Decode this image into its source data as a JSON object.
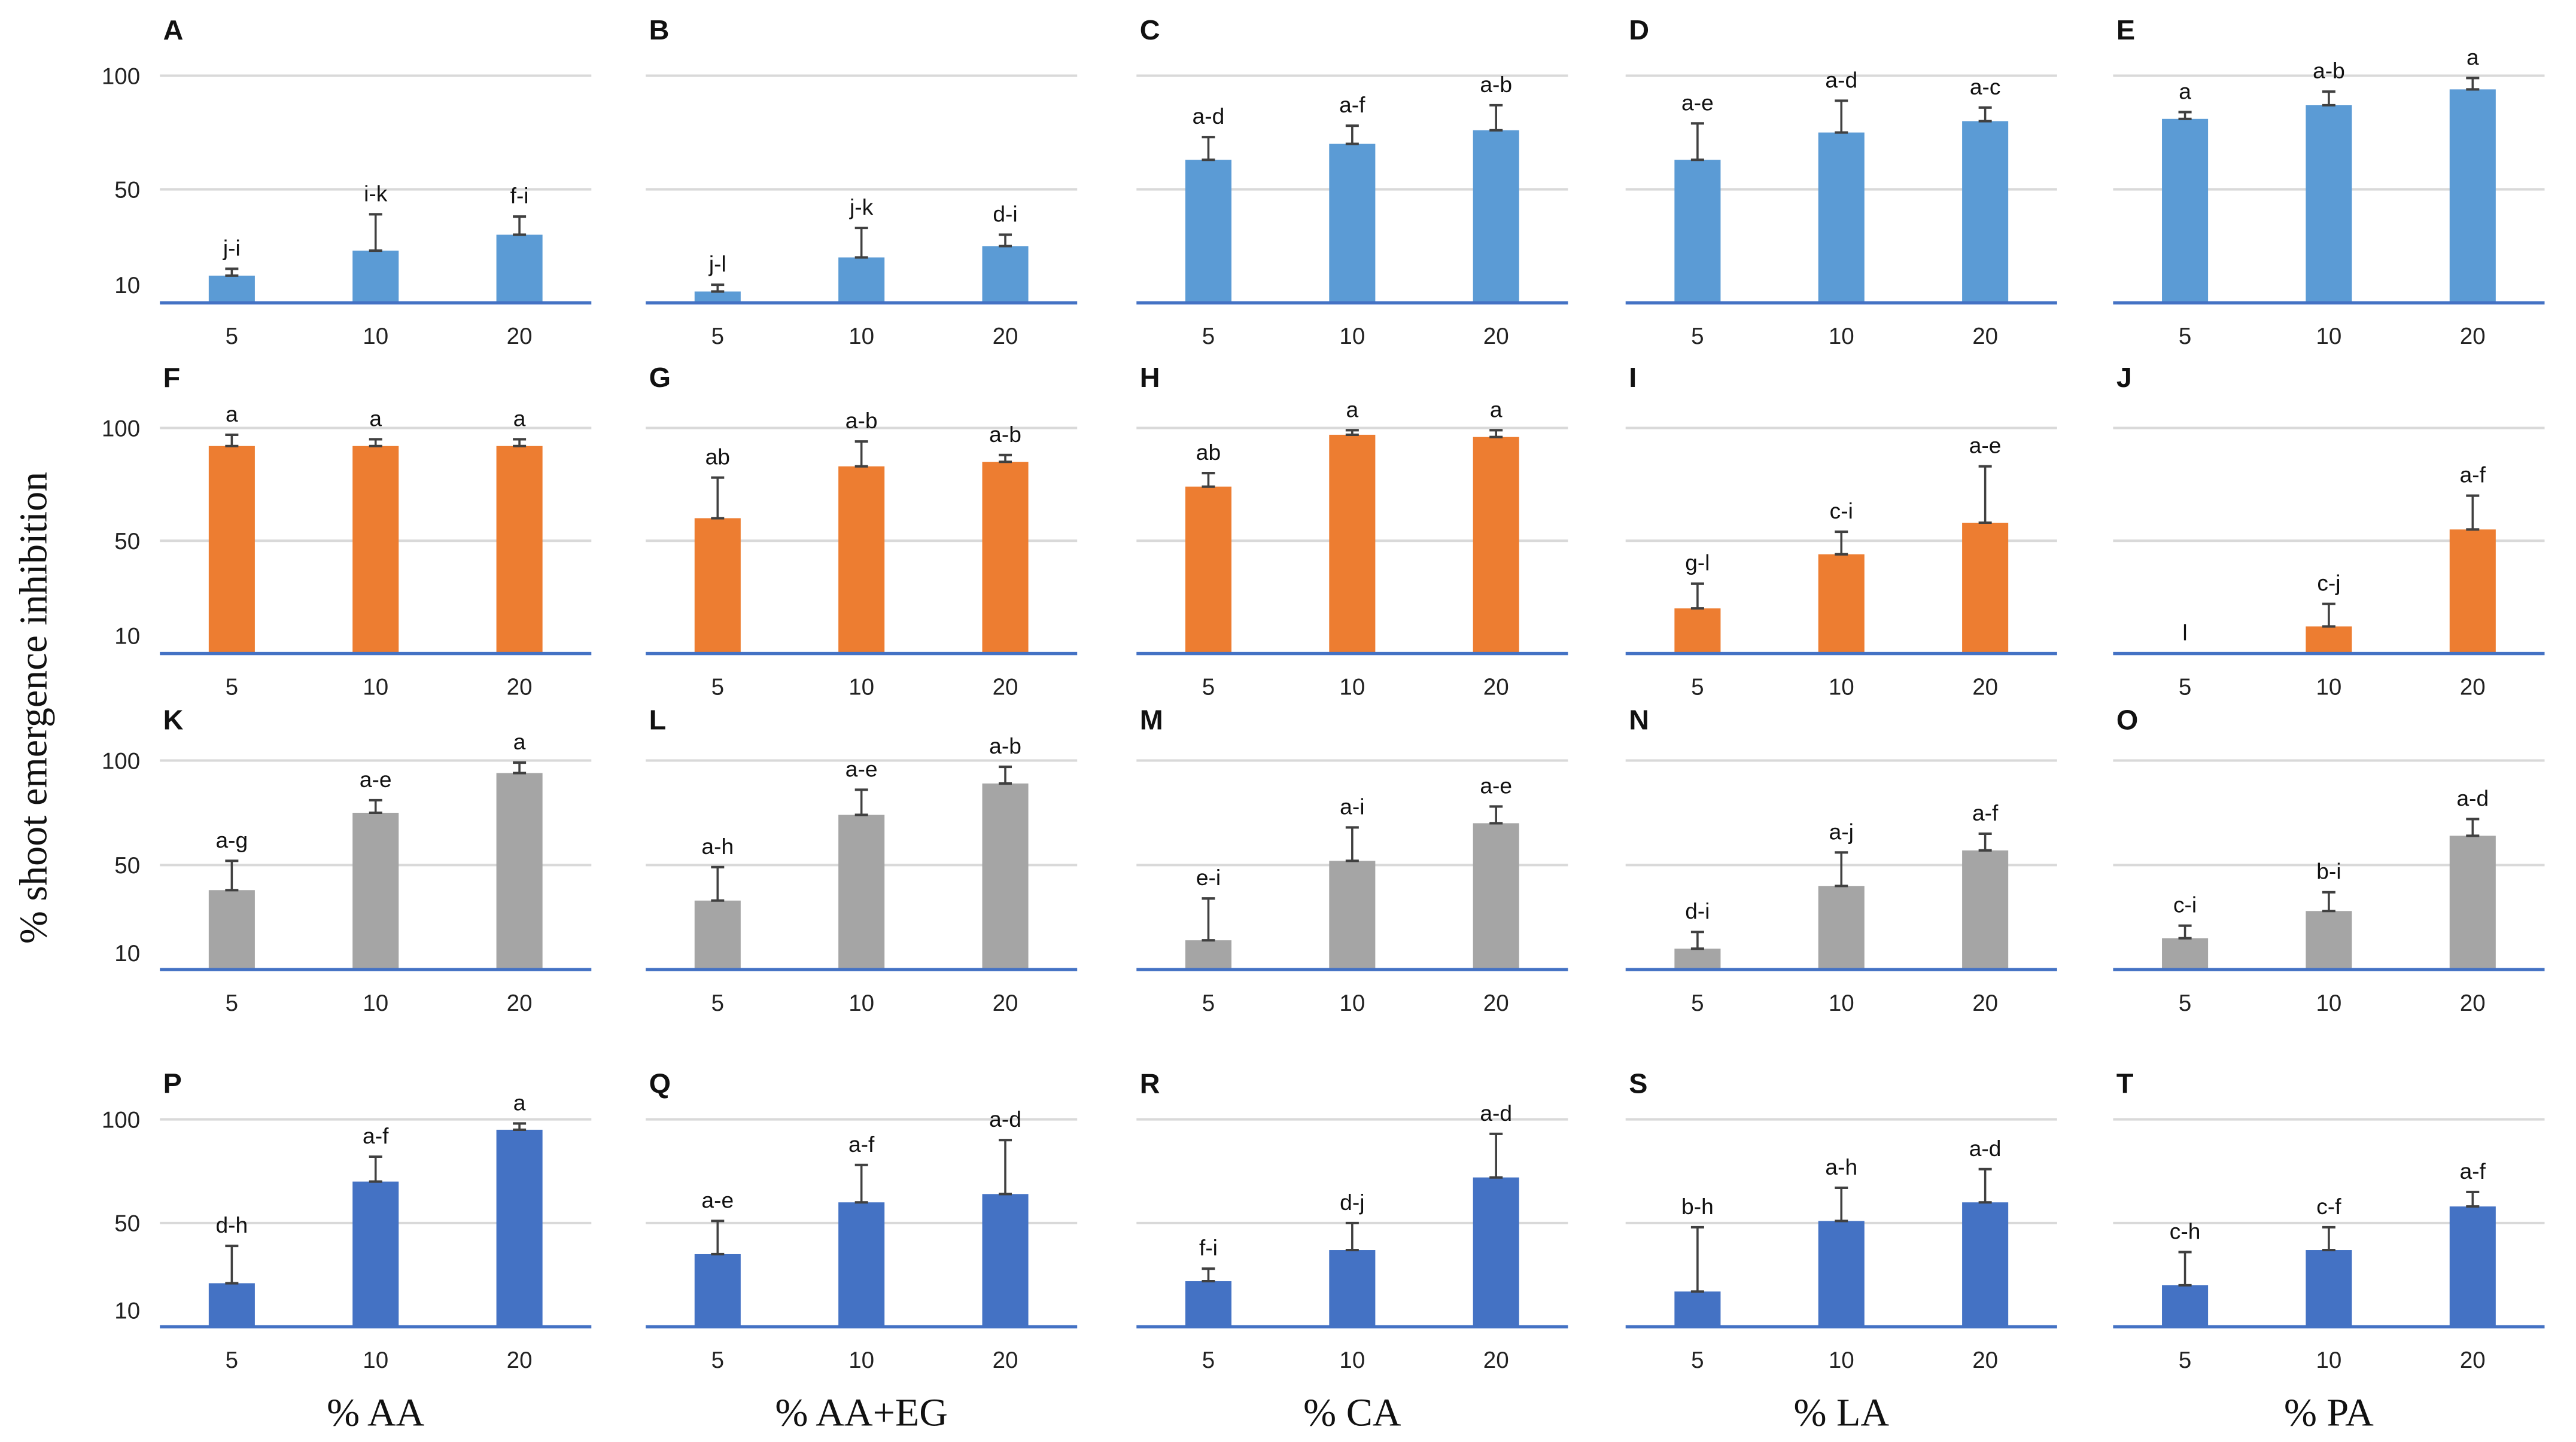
{
  "y_axis_label": "% shoot emergence inhibition",
  "colors": {
    "row1": "#5B9BD5",
    "row2": "#ED7D31",
    "row3": "#A5A5A5",
    "row4": "#4472C4",
    "axis": "#4472C4",
    "grid": "#D9D9D9",
    "error": "#404040"
  },
  "x_axis_labels": [
    "% AA",
    "% AA+EG",
    "% CA",
    "% LA",
    "% PA"
  ],
  "y_tick_labels": [
    "100",
    "50",
    "10"
  ],
  "chart_data": [
    {
      "type": "bar",
      "panel": "A",
      "categories": [
        "5",
        "10",
        "20"
      ],
      "values": [
        12,
        23,
        30
      ],
      "errors": [
        3,
        16,
        8
      ],
      "letters": [
        "j-i",
        "i-k",
        "f-i"
      ],
      "ylim": [
        0,
        100
      ]
    },
    {
      "type": "bar",
      "panel": "B",
      "categories": [
        "5",
        "10",
        "20"
      ],
      "values": [
        5,
        20,
        25
      ],
      "errors": [
        3,
        13,
        5
      ],
      "letters": [
        "j-l",
        "j-k",
        "d-i"
      ],
      "ylim": [
        0,
        100
      ]
    },
    {
      "type": "bar",
      "panel": "C",
      "categories": [
        "5",
        "10",
        "20"
      ],
      "values": [
        63,
        70,
        76
      ],
      "errors": [
        10,
        8,
        11
      ],
      "letters": [
        "a-d",
        "a-f",
        "a-b"
      ],
      "ylim": [
        0,
        100
      ]
    },
    {
      "type": "bar",
      "panel": "D",
      "categories": [
        "5",
        "10",
        "20"
      ],
      "values": [
        63,
        75,
        80
      ],
      "errors": [
        16,
        14,
        6
      ],
      "letters": [
        "a-e",
        "a-d",
        "a-c"
      ],
      "ylim": [
        0,
        100
      ]
    },
    {
      "type": "bar",
      "panel": "E",
      "categories": [
        "5",
        "10",
        "20"
      ],
      "values": [
        81,
        87,
        94
      ],
      "errors": [
        3,
        6,
        5
      ],
      "letters": [
        "a",
        "a-b",
        "a"
      ],
      "ylim": [
        0,
        100
      ]
    },
    {
      "type": "bar",
      "panel": "F",
      "categories": [
        "5",
        "10",
        "20"
      ],
      "values": [
        92,
        92,
        92
      ],
      "errors": [
        5,
        3,
        3
      ],
      "letters": [
        "a",
        "a",
        "a"
      ],
      "ylim": [
        0,
        100
      ]
    },
    {
      "type": "bar",
      "panel": "G",
      "categories": [
        "5",
        "10",
        "20"
      ],
      "values": [
        60,
        83,
        85
      ],
      "errors": [
        18,
        11,
        3
      ],
      "letters": [
        "ab",
        "a-b",
        "a-b"
      ],
      "ylim": [
        0,
        100
      ]
    },
    {
      "type": "bar",
      "panel": "H",
      "categories": [
        "5",
        "10",
        "20"
      ],
      "values": [
        74,
        97,
        96
      ],
      "errors": [
        6,
        2,
        3
      ],
      "letters": [
        "ab",
        "a",
        "a"
      ],
      "ylim": [
        0,
        100
      ]
    },
    {
      "type": "bar",
      "panel": "I",
      "categories": [
        "5",
        "10",
        "20"
      ],
      "values": [
        20,
        44,
        58
      ],
      "errors": [
        11,
        10,
        25
      ],
      "letters": [
        "g-l",
        "c-i",
        "a-e"
      ],
      "ylim": [
        0,
        100
      ]
    },
    {
      "type": "bar",
      "panel": "J",
      "categories": [
        "5",
        "10",
        "20"
      ],
      "values": [
        0,
        12,
        55
      ],
      "errors": [
        0,
        10,
        15
      ],
      "letters": [
        "l",
        "c-j",
        "a-f"
      ],
      "ylim": [
        0,
        100
      ]
    },
    {
      "type": "bar",
      "panel": "K",
      "categories": [
        "5",
        "10",
        "20"
      ],
      "values": [
        38,
        75,
        94
      ],
      "errors": [
        14,
        6,
        5
      ],
      "letters": [
        "a-g",
        "a-e",
        "a"
      ],
      "ylim": [
        0,
        100
      ]
    },
    {
      "type": "bar",
      "panel": "L",
      "categories": [
        "5",
        "10",
        "20"
      ],
      "values": [
        33,
        74,
        89
      ],
      "errors": [
        16,
        12,
        8
      ],
      "letters": [
        "a-h",
        "a-e",
        "a-b"
      ],
      "ylim": [
        0,
        100
      ]
    },
    {
      "type": "bar",
      "panel": "M",
      "categories": [
        "5",
        "10",
        "20"
      ],
      "values": [
        14,
        52,
        70
      ],
      "errors": [
        20,
        16,
        8
      ],
      "letters": [
        "e-i",
        "a-i",
        "a-e"
      ],
      "ylim": [
        0,
        100
      ]
    },
    {
      "type": "bar",
      "panel": "N",
      "categories": [
        "5",
        "10",
        "20"
      ],
      "values": [
        10,
        40,
        57
      ],
      "errors": [
        8,
        16,
        8
      ],
      "letters": [
        "d-i",
        "a-j",
        "a-f"
      ],
      "ylim": [
        0,
        100
      ]
    },
    {
      "type": "bar",
      "panel": "O",
      "categories": [
        "5",
        "10",
        "20"
      ],
      "values": [
        15,
        28,
        64
      ],
      "errors": [
        6,
        9,
        8
      ],
      "letters": [
        "c-i",
        "b-i",
        "a-d"
      ],
      "ylim": [
        0,
        100
      ]
    },
    {
      "type": "bar",
      "panel": "P",
      "categories": [
        "5",
        "10",
        "20"
      ],
      "values": [
        21,
        70,
        95
      ],
      "errors": [
        18,
        12,
        3
      ],
      "letters": [
        "d-h",
        "a-f",
        "a"
      ],
      "ylim": [
        0,
        100
      ]
    },
    {
      "type": "bar",
      "panel": "Q",
      "categories": [
        "5",
        "10",
        "20"
      ],
      "values": [
        35,
        60,
        64
      ],
      "errors": [
        16,
        18,
        26
      ],
      "letters": [
        "a-e",
        "a-f",
        "a-d"
      ],
      "ylim": [
        0,
        100
      ]
    },
    {
      "type": "bar",
      "panel": "R",
      "categories": [
        "5",
        "10",
        "20"
      ],
      "values": [
        22,
        37,
        72
      ],
      "errors": [
        6,
        13,
        21
      ],
      "letters": [
        "f-i",
        "d-j",
        "a-d"
      ],
      "ylim": [
        0,
        100
      ]
    },
    {
      "type": "bar",
      "panel": "S",
      "categories": [
        "5",
        "10",
        "20"
      ],
      "values": [
        17,
        51,
        60
      ],
      "errors": [
        31,
        16,
        16
      ],
      "letters": [
        "b-h",
        "a-h",
        "a-d"
      ],
      "ylim": [
        0,
        100
      ]
    },
    {
      "type": "bar",
      "panel": "T",
      "categories": [
        "5",
        "10",
        "20"
      ],
      "values": [
        20,
        37,
        58
      ],
      "errors": [
        16,
        11,
        7
      ],
      "letters": [
        "c-h",
        "c-f",
        "a-f"
      ],
      "ylim": [
        0,
        100
      ]
    }
  ]
}
